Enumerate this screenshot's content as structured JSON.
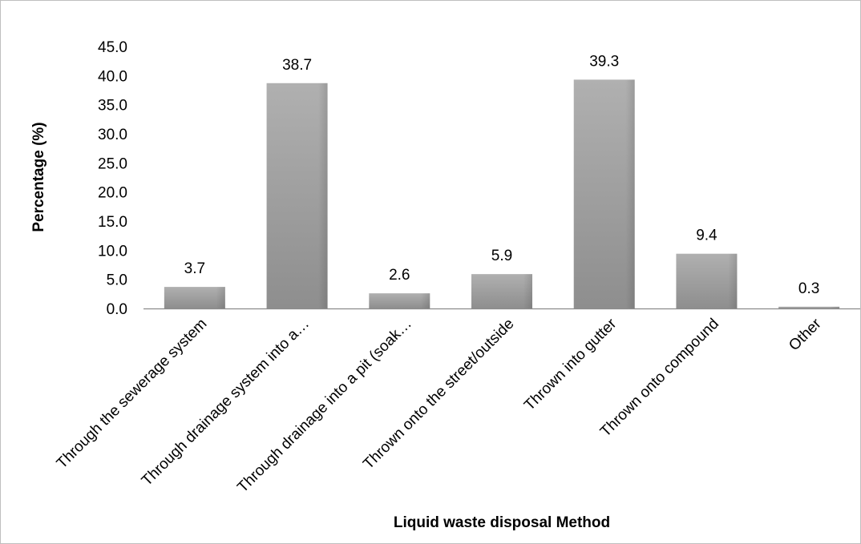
{
  "chart_data": {
    "type": "bar",
    "categories": [
      "Through the sewerage system",
      "Through drainage system into a…",
      "Through drainage into a pit (soak…",
      "Thrown onto the street/outside",
      "Thrown into gutter",
      "Thrown onto compound",
      "Other"
    ],
    "values": [
      3.7,
      38.7,
      2.6,
      5.9,
      39.3,
      9.4,
      0.3
    ],
    "data_labels": [
      "3.7",
      "38.7",
      "2.6",
      "5.9",
      "39.3",
      "9.4",
      "0.3"
    ],
    "title": "",
    "xlabel": "Liquid waste disposal Method",
    "ylabel": "Percentage (%)",
    "ylim": [
      0,
      45
    ],
    "yticks": [
      "0.0",
      "5.0",
      "10.0",
      "15.0",
      "20.0",
      "25.0",
      "30.0",
      "35.0",
      "40.0",
      "45.0"
    ],
    "grid": false,
    "legend": "none",
    "colors": {
      "bar_light": "#b5b5b5",
      "bar_dark": "#8c8c8c",
      "axis": "#8c8c8c"
    }
  }
}
